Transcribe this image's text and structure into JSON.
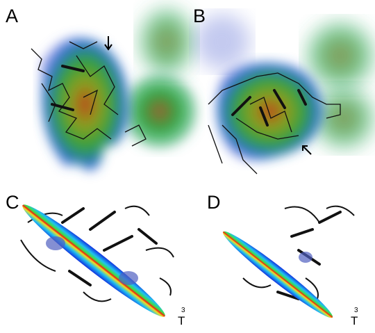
{
  "panels": [
    {
      "label": "A"
    },
    {
      "label": "B"
    },
    {
      "label": "C",
      "annotation": {
        "superscript": "3",
        "text": "T"
      }
    },
    {
      "label": "D",
      "annotation": {
        "superscript": "3",
        "text": "T"
      }
    }
  ]
}
